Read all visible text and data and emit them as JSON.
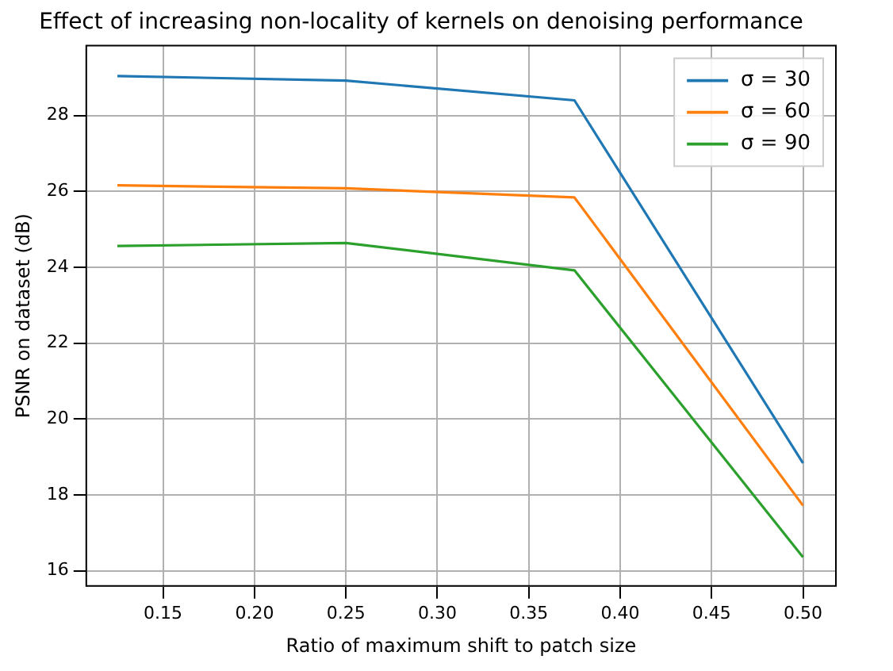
{
  "chart_data": {
    "type": "line",
    "title": "Effect of increasing non-locality of kernels on denoising performance",
    "xlabel": "Ratio of maximum shift to patch size",
    "ylabel": "PSNR on dataset (dB)",
    "x": [
      0.125,
      0.25,
      0.375,
      0.5
    ],
    "series": [
      {
        "name": "σ = 30",
        "color": "#1f77b4",
        "values": [
          29.04,
          28.92,
          28.4,
          18.84
        ]
      },
      {
        "name": "σ = 60",
        "color": "#ff7f0e",
        "values": [
          26.16,
          26.08,
          25.84,
          17.72
        ]
      },
      {
        "name": "σ = 90",
        "color": "#2ca02c",
        "values": [
          24.56,
          24.64,
          23.92,
          16.36
        ]
      }
    ],
    "xlim": [
      0.108,
      0.518
    ],
    "ylim": [
      15.6,
      29.84
    ],
    "xticks": [
      {
        "value": 0.15,
        "label": "0.15"
      },
      {
        "value": 0.2,
        "label": "0.20"
      },
      {
        "value": 0.25,
        "label": "0.25"
      },
      {
        "value": 0.3,
        "label": "0.30"
      },
      {
        "value": 0.35,
        "label": "0.35"
      },
      {
        "value": 0.4,
        "label": "0.40"
      },
      {
        "value": 0.45,
        "label": "0.45"
      },
      {
        "value": 0.5,
        "label": "0.50"
      }
    ],
    "yticks": [
      16,
      18,
      20,
      22,
      24,
      26,
      28
    ],
    "grid": true,
    "legend": "top right",
    "marker": "none",
    "line_style": "solid"
  }
}
